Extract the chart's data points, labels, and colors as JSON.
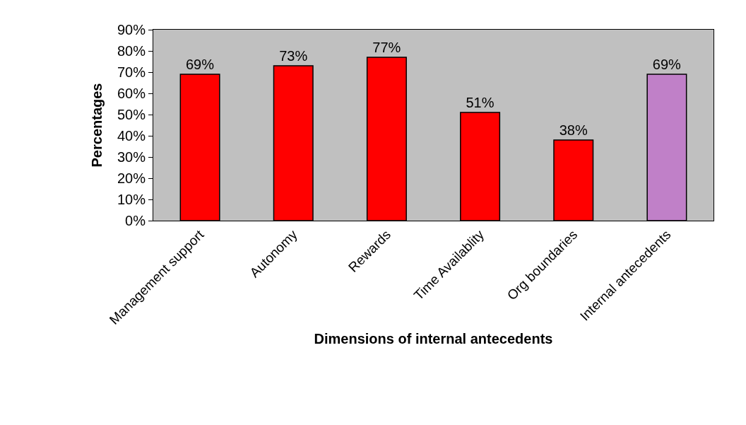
{
  "chart_data": {
    "type": "bar",
    "xlabel": "Dimensions of internal antecedents",
    "ylabel": "Percentages",
    "categories": [
      "Management support",
      "Autonomy",
      "Rewards",
      "Time Availablity",
      "Org boundaries",
      "Internal antecedents"
    ],
    "values": [
      69,
      73,
      77,
      51,
      38,
      69
    ],
    "colors": [
      "#ff0000",
      "#ff0000",
      "#ff0000",
      "#ff0000",
      "#ff0000",
      "#c080c8"
    ],
    "value_labels": [
      "69%",
      "73%",
      "77%",
      "51%",
      "38%",
      "69%"
    ],
    "ylim": [
      0,
      90
    ],
    "yticks": [
      {
        "value": 0,
        "label": "0%"
      },
      {
        "value": 10,
        "label": "10%"
      },
      {
        "value": 20,
        "label": "20%"
      },
      {
        "value": 30,
        "label": "30%"
      },
      {
        "value": 40,
        "label": "40%"
      },
      {
        "value": 50,
        "label": "50%"
      },
      {
        "value": 60,
        "label": "60%"
      },
      {
        "value": 70,
        "label": "70%"
      },
      {
        "value": 80,
        "label": "80%"
      },
      {
        "value": 90,
        "label": "90%"
      }
    ]
  }
}
